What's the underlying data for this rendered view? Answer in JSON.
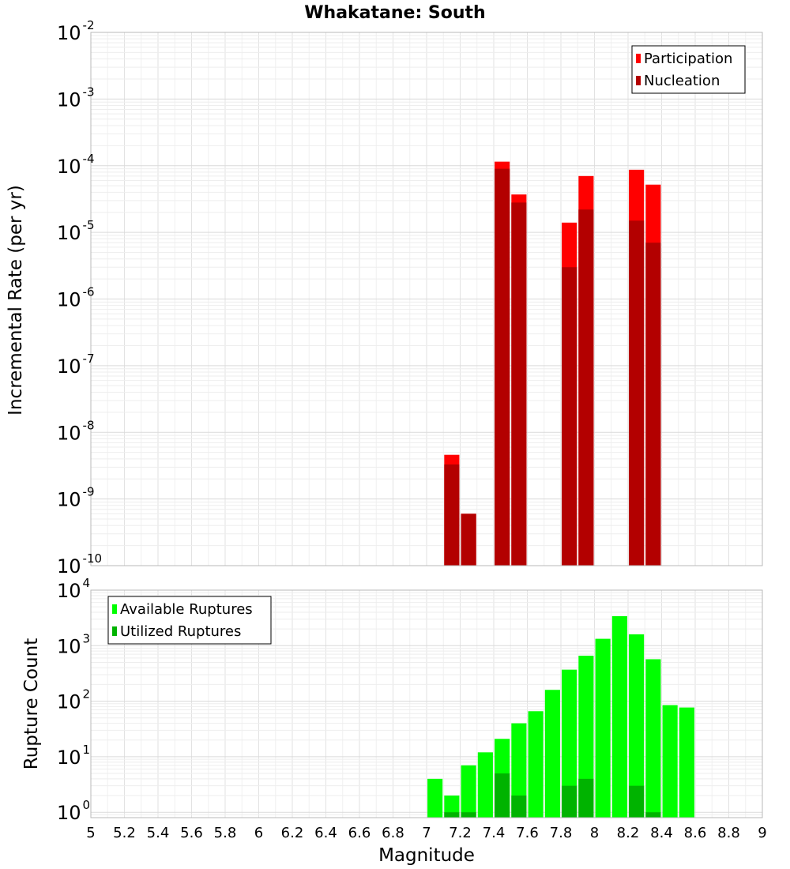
{
  "chart_data": [
    {
      "type": "bar",
      "title": "Whakatane: South",
      "xlabel": "",
      "ylabel": "Incremental Rate (per yr)",
      "yscale": "log",
      "xlim": [
        5,
        9
      ],
      "ylim": [
        1e-10,
        0.01
      ],
      "y_tick_labels": [
        {
          "base": "10",
          "exp": "-10"
        },
        {
          "base": "10",
          "exp": "-9"
        },
        {
          "base": "10",
          "exp": "-8"
        },
        {
          "base": "10",
          "exp": "-7"
        },
        {
          "base": "10",
          "exp": "-6"
        },
        {
          "base": "10",
          "exp": "-5"
        },
        {
          "base": "10",
          "exp": "-4"
        },
        {
          "base": "10",
          "exp": "-3"
        },
        {
          "base": "10",
          "exp": "-2"
        }
      ],
      "grid": true,
      "legend_position": "top-right",
      "bar_width": 0.09,
      "series": [
        {
          "name": "Participation",
          "color": "#ff0000",
          "points": [
            {
              "x": 7.15,
              "y": 4.6e-09
            },
            {
              "x": 7.25,
              "y": 6e-10
            },
            {
              "x": 7.45,
              "y": 0.000115
            },
            {
              "x": 7.55,
              "y": 3.7e-05
            },
            {
              "x": 7.85,
              "y": 1.4e-05
            },
            {
              "x": 7.95,
              "y": 7e-05
            },
            {
              "x": 8.25,
              "y": 8.7e-05
            },
            {
              "x": 8.35,
              "y": 5.2e-05
            }
          ]
        },
        {
          "name": "Nucleation",
          "color": "#b30000",
          "points": [
            {
              "x": 7.15,
              "y": 3.3e-09
            },
            {
              "x": 7.25,
              "y": 6e-10
            },
            {
              "x": 7.45,
              "y": 9e-05
            },
            {
              "x": 7.55,
              "y": 2.8e-05
            },
            {
              "x": 7.85,
              "y": 3e-06
            },
            {
              "x": 7.95,
              "y": 2.2e-05
            },
            {
              "x": 8.25,
              "y": 1.5e-05
            },
            {
              "x": 8.35,
              "y": 7e-06
            }
          ]
        }
      ]
    },
    {
      "type": "bar",
      "title": "",
      "xlabel": "Magnitude",
      "ylabel": "Rupture Count",
      "yscale": "log",
      "xlim": [
        5,
        9
      ],
      "ylim": [
        0.8,
        10000
      ],
      "x_ticks": [
        5,
        5.2,
        5.4,
        5.6,
        5.8,
        6,
        6.2,
        6.4,
        6.6,
        6.8,
        7,
        7.2,
        7.4,
        7.6,
        7.8,
        8,
        8.2,
        8.4,
        8.6,
        8.8,
        9
      ],
      "x_tick_labels": [
        "5",
        "5.2",
        "5.4",
        "5.6",
        "5.8",
        "6",
        "6.2",
        "6.4",
        "6.6",
        "6.8",
        "7",
        "7.2",
        "7.4",
        "7.6",
        "7.8",
        "8",
        "8.2",
        "8.4",
        "8.6",
        "8.8",
        "9"
      ],
      "y_tick_labels": [
        {
          "base": "10",
          "exp": "0"
        },
        {
          "base": "10",
          "exp": "1"
        },
        {
          "base": "10",
          "exp": "2"
        },
        {
          "base": "10",
          "exp": "3"
        },
        {
          "base": "10",
          "exp": "4"
        }
      ],
      "grid": true,
      "legend_position": "top-left",
      "bar_width": 0.09,
      "series": [
        {
          "name": "Available Ruptures",
          "color": "#00ff00",
          "points": [
            {
              "x": 7.05,
              "y": 4
            },
            {
              "x": 7.15,
              "y": 2
            },
            {
              "x": 7.25,
              "y": 7
            },
            {
              "x": 7.35,
              "y": 12
            },
            {
              "x": 7.45,
              "y": 21
            },
            {
              "x": 7.55,
              "y": 40
            },
            {
              "x": 7.65,
              "y": 66
            },
            {
              "x": 7.75,
              "y": 160
            },
            {
              "x": 7.85,
              "y": 370
            },
            {
              "x": 7.95,
              "y": 660
            },
            {
              "x": 8.05,
              "y": 1330
            },
            {
              "x": 8.15,
              "y": 3400
            },
            {
              "x": 8.25,
              "y": 1600
            },
            {
              "x": 8.35,
              "y": 570
            },
            {
              "x": 8.45,
              "y": 85
            },
            {
              "x": 8.55,
              "y": 77
            }
          ]
        },
        {
          "name": "Utilized Ruptures",
          "color": "#00b300",
          "points": [
            {
              "x": 7.15,
              "y": 1
            },
            {
              "x": 7.25,
              "y": 1
            },
            {
              "x": 7.45,
              "y": 5
            },
            {
              "x": 7.55,
              "y": 2
            },
            {
              "x": 7.85,
              "y": 3
            },
            {
              "x": 7.95,
              "y": 4
            },
            {
              "x": 8.25,
              "y": 3
            },
            {
              "x": 8.35,
              "y": 1
            }
          ]
        }
      ]
    }
  ]
}
